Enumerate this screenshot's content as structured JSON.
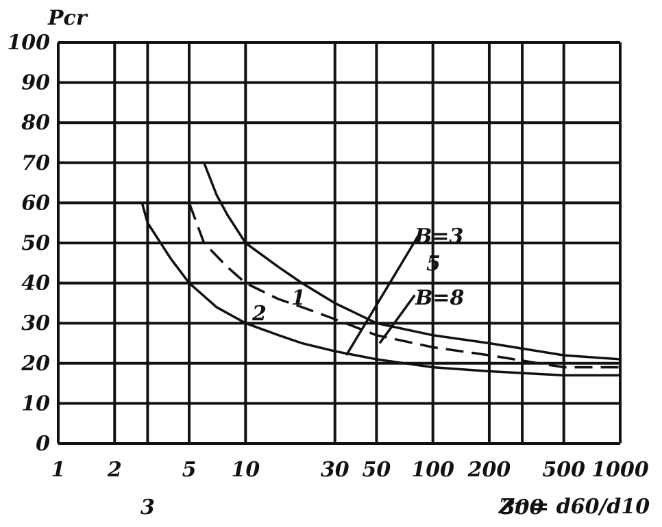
{
  "chart_data": {
    "type": "line",
    "ylabel": "Pcr",
    "xlabel": "Zr = d60/d10",
    "xscale": "log",
    "grid": true,
    "color": "#111111",
    "xlim": [
      1,
      1000
    ],
    "ylim": [
      0,
      100
    ],
    "xticks": [
      1,
      2,
      3,
      5,
      10,
      30,
      50,
      100,
      200,
      300,
      500,
      1000
    ],
    "yticks": [
      0,
      10,
      20,
      30,
      40,
      50,
      60,
      70,
      80,
      90,
      100
    ],
    "series": [
      {
        "x": [
          6,
          7,
          8,
          10,
          15,
          20,
          30,
          50,
          100,
          200,
          500,
          1000
        ],
        "values": [
          70,
          62,
          57,
          50,
          44,
          40,
          35,
          30,
          27,
          25,
          22,
          21
        ],
        "dash": false
      },
      {
        "name": "1",
        "x": [
          5,
          6,
          8,
          10,
          15,
          20,
          30,
          50,
          100,
          200,
          500,
          1000
        ],
        "values": [
          60,
          50,
          44,
          40,
          36,
          34,
          31,
          27,
          24,
          22,
          19,
          19
        ],
        "dash": true
      },
      {
        "name": "2",
        "x": [
          2.8,
          3,
          4,
          5,
          7,
          10,
          15,
          20,
          30,
          50,
          100,
          200,
          500,
          1000
        ],
        "values": [
          60,
          55,
          46,
          40,
          34,
          30,
          27,
          25,
          23,
          21,
          19,
          18,
          17,
          17
        ],
        "dash": false
      },
      {
        "name": "B=3",
        "x": [
          34.5,
          84
        ],
        "values": [
          22,
          52
        ],
        "dash": false
      },
      {
        "name": "B=8",
        "x": [
          52,
          80
        ],
        "values": [
          25,
          37
        ],
        "dash": false
      }
    ],
    "annotations": [
      "5"
    ]
  }
}
